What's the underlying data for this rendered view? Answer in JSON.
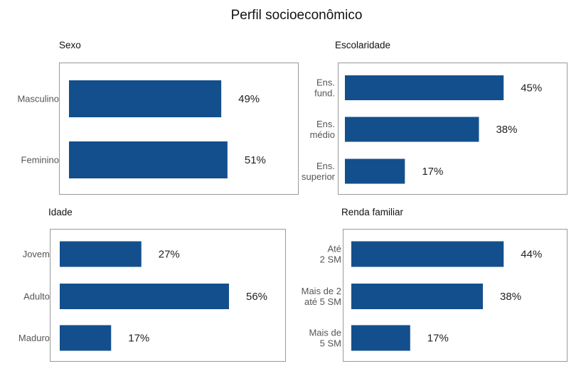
{
  "title": "Perfil socioeconômico",
  "bar_color": "#134f8c",
  "chart_data": [
    {
      "type": "bar",
      "orientation": "horizontal",
      "title": "Sexo",
      "categories": [
        [
          "Masculino"
        ],
        [
          "Feminino"
        ]
      ],
      "values": [
        49,
        51
      ],
      "labels": [
        "49%",
        "51%"
      ]
    },
    {
      "type": "bar",
      "orientation": "horizontal",
      "title": "Escolaridade",
      "categories": [
        [
          "Ens.",
          "fund."
        ],
        [
          "Ens.",
          "médio"
        ],
        [
          "Ens.",
          "superior"
        ]
      ],
      "values": [
        45,
        38,
        17
      ],
      "labels": [
        "45%",
        "38%",
        "17%"
      ]
    },
    {
      "type": "bar",
      "orientation": "horizontal",
      "title": "Idade",
      "categories": [
        [
          "Jovem"
        ],
        [
          "Adulto"
        ],
        [
          "Maduro"
        ]
      ],
      "values": [
        27,
        56,
        17
      ],
      "labels": [
        "27%",
        "56%",
        "17%"
      ]
    },
    {
      "type": "bar",
      "orientation": "horizontal",
      "title": "Renda familiar",
      "categories": [
        [
          "Até",
          "2 SM"
        ],
        [
          "Mais de 2",
          "até 5 SM"
        ],
        [
          "Mais de",
          "5 SM"
        ]
      ],
      "values": [
        44,
        38,
        17
      ],
      "labels": [
        "44%",
        "38%",
        "17%"
      ]
    }
  ]
}
